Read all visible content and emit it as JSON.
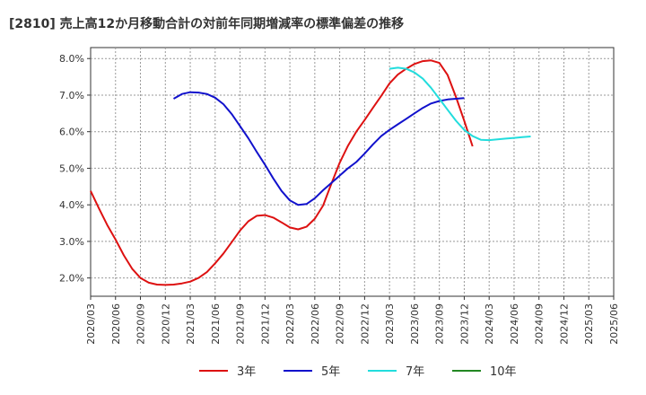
{
  "chart_data": {
    "type": "line",
    "title": "[2810]  売上高12か月移動合計の対前年同期増減率の標準偏差の推移",
    "xlabel": "",
    "ylabel": "",
    "ylim": [
      1.5,
      8.3
    ],
    "yticks": [
      2.0,
      3.0,
      4.0,
      5.0,
      6.0,
      7.0,
      8.0
    ],
    "ytick_labels": [
      "2.0%",
      "3.0%",
      "4.0%",
      "5.0%",
      "6.0%",
      "7.0%",
      "8.0%"
    ],
    "xticks": [
      "2020/03",
      "2020/06",
      "2020/09",
      "2020/12",
      "2021/03",
      "2021/06",
      "2021/09",
      "2021/12",
      "2022/03",
      "2022/06",
      "2022/09",
      "2022/12",
      "2023/03",
      "2023/06",
      "2023/09",
      "2023/12",
      "2024/03",
      "2024/06",
      "2024/09",
      "2024/12",
      "2025/03",
      "2025/06"
    ],
    "grid": true,
    "legend_position": "bottom",
    "series": [
      {
        "name": "3年",
        "color": "#dd1111",
        "start": "2020/03",
        "values": [
          4.38,
          3.9,
          3.45,
          3.05,
          2.62,
          2.25,
          2.0,
          1.87,
          1.82,
          1.81,
          1.82,
          1.85,
          1.9,
          2.0,
          2.16,
          2.4,
          2.67,
          2.98,
          3.3,
          3.55,
          3.7,
          3.72,
          3.65,
          3.52,
          3.38,
          3.33,
          3.4,
          3.62,
          3.98,
          4.58,
          5.15,
          5.62,
          6.0,
          6.32,
          6.65,
          6.98,
          7.32,
          7.56,
          7.72,
          7.85,
          7.93,
          7.95,
          7.88,
          7.55,
          6.95,
          6.3,
          5.6
        ]
      },
      {
        "name": "5年",
        "color": "#1111cc",
        "start": "2021/01",
        "values": [
          6.9,
          7.03,
          7.08,
          7.07,
          7.03,
          6.93,
          6.75,
          6.48,
          6.15,
          5.82,
          5.45,
          5.1,
          4.72,
          4.38,
          4.12,
          4.0,
          4.02,
          4.18,
          4.4,
          4.6,
          4.8,
          5.0,
          5.17,
          5.4,
          5.65,
          5.88,
          6.05,
          6.2,
          6.35,
          6.5,
          6.65,
          6.77,
          6.84,
          6.88,
          6.9,
          6.92
        ]
      },
      {
        "name": "7年",
        "color": "#22dddd",
        "start": "2023/03",
        "values": [
          7.72,
          7.75,
          7.72,
          7.62,
          7.45,
          7.2,
          6.9,
          6.6,
          6.3,
          6.05,
          5.88,
          5.78,
          5.77,
          5.79,
          5.81,
          5.83,
          5.85,
          5.87
        ]
      },
      {
        "name": "10年",
        "color": "#228822",
        "start": "2020/03",
        "values": []
      }
    ]
  }
}
